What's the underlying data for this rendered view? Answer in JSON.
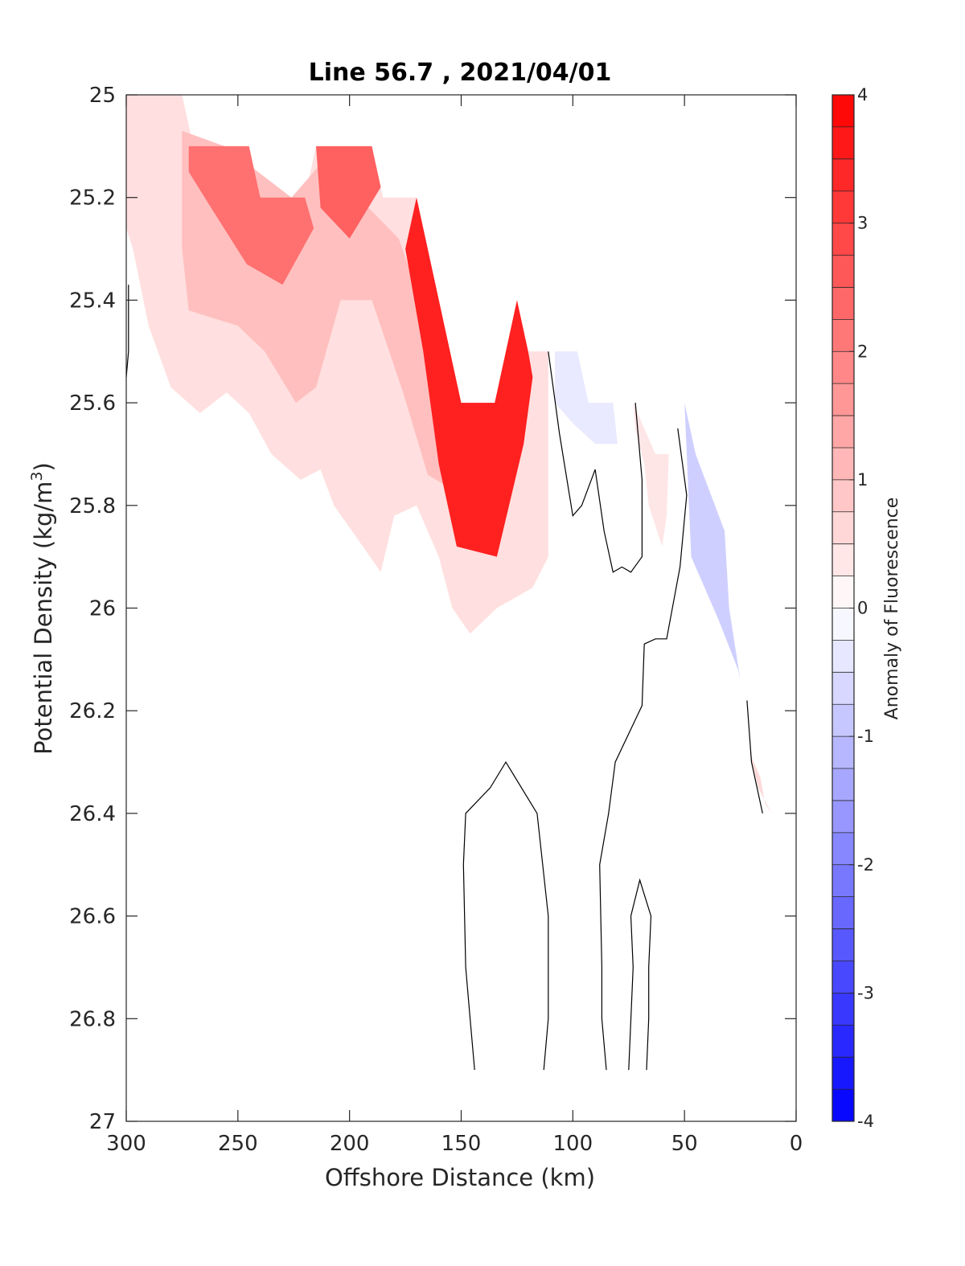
{
  "chart_data": {
    "type": "contour",
    "title": "Line 56.7 , 2021/04/01",
    "xlabel": "Offshore Distance (km)",
    "ylabel": "Potential Density (kg/m³)",
    "ylabel_main": "Potential Density (kg/m",
    "ylabel_sup": "3",
    "ylabel_tail": ")",
    "xlim": [
      300,
      0
    ],
    "ylim": [
      25,
      27
    ],
    "y_reversed": true,
    "xticks": [
      "300",
      "250",
      "200",
      "150",
      "100",
      "50",
      "0"
    ],
    "yticks": [
      "25",
      "25.2",
      "25.4",
      "25.6",
      "25.8",
      "26",
      "26.2",
      "26.4",
      "26.6",
      "26.8",
      "27"
    ],
    "colorbar": {
      "label": "Anomaly of Fluorescence",
      "range": [
        -4,
        4
      ],
      "levels_step": 0.25,
      "ticks": [
        "4",
        "3",
        "2",
        "1",
        "0",
        "-1",
        "-2",
        "-3",
        "-4"
      ],
      "colormap": "blue-white-red",
      "high_color": "#ff0000",
      "low_color": "#0000ff"
    },
    "regions": [
      {
        "name": "positive anomaly band",
        "level": 0.5,
        "points": [
          [
            300,
            25
          ],
          [
            275,
            25
          ],
          [
            270,
            25.1
          ],
          [
            245,
            25.1
          ],
          [
            240,
            25.2
          ],
          [
            220,
            25.2
          ],
          [
            215,
            25.1
          ],
          [
            190,
            25.1
          ],
          [
            185,
            25.2
          ],
          [
            170,
            25.2
          ],
          [
            150,
            25.6
          ],
          [
            135,
            25.6
          ],
          [
            125,
            25.4
          ],
          [
            120,
            25.5
          ],
          [
            111,
            25.5
          ],
          [
            111,
            25.9
          ],
          [
            118,
            25.96
          ],
          [
            134,
            26.0
          ],
          [
            146,
            26.05
          ],
          [
            154,
            26.0
          ],
          [
            160,
            25.9
          ],
          [
            170,
            25.8
          ],
          [
            180,
            25.82
          ],
          [
            186,
            25.93
          ],
          [
            194,
            25.88
          ],
          [
            207,
            25.8
          ],
          [
            213,
            25.73
          ],
          [
            222,
            25.75
          ],
          [
            235,
            25.7
          ],
          [
            245,
            25.62
          ],
          [
            255,
            25.58
          ],
          [
            267,
            25.62
          ],
          [
            280,
            25.57
          ],
          [
            290,
            25.45
          ],
          [
            297,
            25.3
          ],
          [
            300,
            25.26
          ]
        ]
      },
      {
        "name": "central lens",
        "level": 1.0,
        "points": [
          [
            275,
            25.07
          ],
          [
            256,
            25.1
          ],
          [
            226,
            25.2
          ],
          [
            212,
            25.13
          ],
          [
            196,
            25.2
          ],
          [
            178,
            25.28
          ],
          [
            160,
            25.5
          ],
          [
            150,
            25.6
          ],
          [
            150,
            25.78
          ],
          [
            165,
            25.74
          ],
          [
            176,
            25.58
          ],
          [
            190,
            25.4
          ],
          [
            204,
            25.4
          ],
          [
            215,
            25.57
          ],
          [
            224,
            25.6
          ],
          [
            238,
            25.5
          ],
          [
            250,
            25.45
          ],
          [
            272,
            25.42
          ],
          [
            275,
            25.3
          ]
        ]
      },
      {
        "name": "core west",
        "level": 2.25,
        "points": [
          [
            272,
            25.1
          ],
          [
            245,
            25.1
          ],
          [
            240,
            25.2
          ],
          [
            220,
            25.2
          ],
          [
            216,
            25.26
          ],
          [
            230,
            25.37
          ],
          [
            246,
            25.33
          ],
          [
            262,
            25.22
          ],
          [
            272,
            25.15
          ]
        ]
      },
      {
        "name": "core middle",
        "level": 2.5,
        "points": [
          [
            215,
            25.1
          ],
          [
            190,
            25.1
          ],
          [
            186,
            25.18
          ],
          [
            200,
            25.28
          ],
          [
            213,
            25.22
          ]
        ]
      },
      {
        "name": "core east",
        "level": 3.5,
        "points": [
          [
            170,
            25.2
          ],
          [
            150,
            25.6
          ],
          [
            135,
            25.6
          ],
          [
            125,
            25.4
          ],
          [
            120,
            25.5
          ],
          [
            118,
            25.55
          ],
          [
            122,
            25.68
          ],
          [
            134,
            25.9
          ],
          [
            152,
            25.88
          ],
          [
            160,
            25.72
          ],
          [
            167,
            25.5
          ],
          [
            175,
            25.3
          ]
        ]
      },
      {
        "name": "small positive patch",
        "level": 0.4,
        "points": [
          [
            73,
            25.6
          ],
          [
            63,
            25.7
          ],
          [
            57,
            25.7
          ],
          [
            58,
            25.82
          ],
          [
            60,
            25.88
          ],
          [
            66,
            25.8
          ],
          [
            68,
            25.72
          ],
          [
            72,
            25.65
          ]
        ]
      },
      {
        "name": "small positive sliver",
        "level": 0.6,
        "points": [
          [
            21,
            26.28
          ],
          [
            17,
            26.35
          ],
          [
            11,
            26.4
          ],
          [
            14,
            26.38
          ],
          [
            16,
            26.33
          ]
        ]
      },
      {
        "name": "negative patch upper",
        "level": -0.35,
        "points": [
          [
            108,
            25.5
          ],
          [
            98,
            25.5
          ],
          [
            93,
            25.6
          ],
          [
            82,
            25.6
          ],
          [
            80,
            25.68
          ],
          [
            90,
            25.68
          ],
          [
            100,
            25.64
          ],
          [
            108,
            25.6
          ]
        ]
      },
      {
        "name": "negative patch lower",
        "level": -0.75,
        "points": [
          [
            50,
            25.6
          ],
          [
            45,
            25.7
          ],
          [
            32,
            25.85
          ],
          [
            30,
            26.0
          ],
          [
            25,
            26.14
          ],
          [
            26,
            26.12
          ],
          [
            35,
            26.02
          ],
          [
            47,
            25.9
          ]
        ]
      }
    ],
    "contour_lines": [
      {
        "name": "zero contour far offshore",
        "points": [
          [
            299,
            25.37
          ],
          [
            299,
            25.5
          ],
          [
            300,
            25.55
          ]
        ]
      },
      {
        "name": "zero contour A",
        "points": [
          [
            111,
            25.5
          ],
          [
            106,
            25.66
          ],
          [
            100,
            25.82
          ],
          [
            96,
            25.8
          ],
          [
            90,
            25.73
          ],
          [
            86,
            25.85
          ],
          [
            82,
            25.93
          ],
          [
            78,
            25.92
          ],
          [
            74,
            25.93
          ],
          [
            69,
            25.9
          ],
          [
            69,
            25.75
          ],
          [
            72,
            25.6
          ]
        ]
      },
      {
        "name": "zero contour B",
        "points": [
          [
            53,
            25.65
          ],
          [
            49,
            25.78
          ],
          [
            52,
            25.92
          ],
          [
            58,
            26.06
          ],
          [
            63,
            26.06
          ],
          [
            68,
            26.07
          ],
          [
            69,
            26.19
          ],
          [
            81,
            26.3
          ],
          [
            84,
            26.4
          ],
          [
            88,
            26.5
          ],
          [
            87,
            26.7
          ],
          [
            87,
            26.8
          ],
          [
            85,
            26.9
          ]
        ]
      },
      {
        "name": "zero contour C",
        "points": [
          [
            144,
            26.9
          ],
          [
            146,
            26.8
          ],
          [
            148,
            26.7
          ],
          [
            149,
            26.5
          ],
          [
            148,
            26.4
          ],
          [
            137,
            26.35
          ],
          [
            130,
            26.3
          ],
          [
            116,
            26.4
          ],
          [
            111,
            26.6
          ],
          [
            111,
            26.8
          ],
          [
            113,
            26.9
          ]
        ]
      },
      {
        "name": "zero contour D",
        "points": [
          [
            75,
            26.9
          ],
          [
            73,
            26.7
          ],
          [
            74,
            26.6
          ],
          [
            70,
            26.53
          ],
          [
            65,
            26.6
          ],
          [
            66,
            26.7
          ],
          [
            66,
            26.8
          ],
          [
            67,
            26.9
          ]
        ]
      },
      {
        "name": "zero contour E",
        "points": [
          [
            22,
            26.18
          ],
          [
            20,
            26.3
          ],
          [
            15,
            26.4
          ]
        ]
      }
    ]
  }
}
